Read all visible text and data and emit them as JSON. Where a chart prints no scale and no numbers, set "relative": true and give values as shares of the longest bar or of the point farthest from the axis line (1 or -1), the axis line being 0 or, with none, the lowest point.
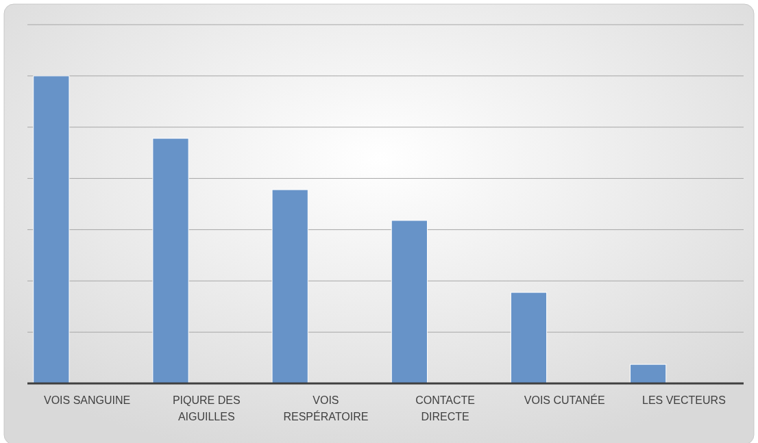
{
  "chart_data": {
    "type": "bar",
    "relative": true,
    "grid": true,
    "color": "#6793c8",
    "categories": [
      "VOIS SANGUINE",
      "PIQURE DES AIGUILLES",
      "VOIS RESPÉRATOIRE",
      "CONTACTE DIRECTE",
      "VOIS CUTANÉE",
      "LES VECTEURS"
    ],
    "values": [
      1,
      0.797,
      0.63,
      0.53,
      0.296,
      0.062
    ]
  }
}
